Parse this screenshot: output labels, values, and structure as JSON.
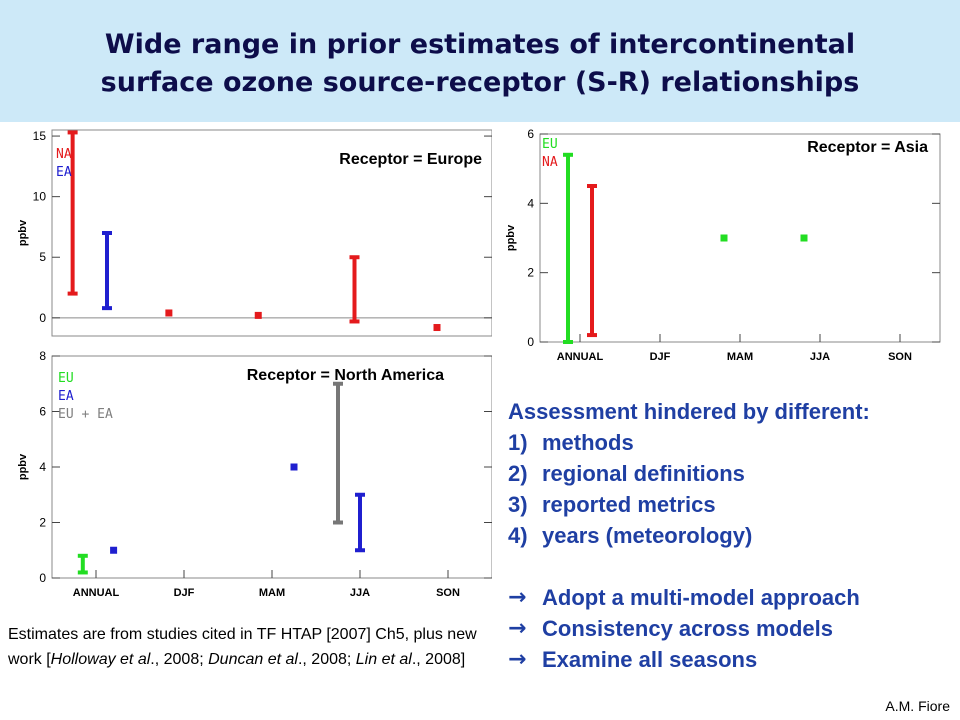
{
  "title": {
    "line1": "Wide range in prior estimates of intercontinental",
    "line2": "surface ozone source-receptor (S-R) relationships"
  },
  "chart_data": [
    {
      "type": "scatter",
      "title": "Receptor = Europe",
      "ylabel": "ppbv",
      "xlabel": "",
      "ylim": [
        -1.5,
        15.5
      ],
      "yticks": [
        0,
        5,
        10,
        15
      ],
      "legend": [
        {
          "label": "NA",
          "color": "#e41a1c"
        },
        {
          "label": "EA",
          "color": "#1f1fcf"
        }
      ],
      "ranges": [
        {
          "x": 0.15,
          "low": 2,
          "high": 15.3,
          "color": "#e41a1c"
        },
        {
          "x": 0.4,
          "low": 0.8,
          "high": 7.0,
          "color": "#1f1fcf"
        },
        {
          "x": 2.2,
          "low": -0.3,
          "high": 5.0,
          "color": "#e41a1c"
        }
      ],
      "points": [
        {
          "x": 0.85,
          "y": 0.4,
          "color": "#e41a1c"
        },
        {
          "x": 1.5,
          "y": 0.2,
          "color": "#e41a1c"
        },
        {
          "x": 2.8,
          "y": -0.8,
          "color": "#e41a1c"
        }
      ]
    },
    {
      "type": "scatter",
      "title": "Receptor = Asia",
      "ylabel": "ppbv",
      "ylim": [
        0,
        6
      ],
      "yticks": [
        0,
        2,
        4,
        6
      ],
      "categories": [
        "ANNUAL",
        "DJF",
        "MAM",
        "JJA",
        "SON"
      ],
      "legend": [
        {
          "label": "EU",
          "color": "#22dd22"
        },
        {
          "label": "NA",
          "color": "#e41a1c"
        }
      ],
      "ranges": [
        {
          "x": -0.15,
          "low": 0,
          "high": 5.4,
          "color": "#22dd22"
        },
        {
          "x": 0.15,
          "low": 0.2,
          "high": 4.5,
          "color": "#e41a1c"
        }
      ],
      "points": [
        {
          "x": 1.8,
          "y": 3.0,
          "color": "#22dd22"
        },
        {
          "x": 2.8,
          "y": 3.0,
          "color": "#22dd22"
        }
      ]
    },
    {
      "type": "scatter",
      "title": "Receptor = North America",
      "ylabel": "ppbv",
      "ylim": [
        0,
        8
      ],
      "yticks": [
        0,
        2,
        4,
        6,
        8
      ],
      "categories": [
        "ANNUAL",
        "DJF",
        "MAM",
        "JJA",
        "SON"
      ],
      "legend": [
        {
          "label": "EU",
          "color": "#22dd22"
        },
        {
          "label": "EA",
          "color": "#1f1fcf"
        },
        {
          "label": "EU + EA",
          "color": "#808080"
        }
      ],
      "ranges": [
        {
          "x": -0.15,
          "low": 0.2,
          "high": 0.8,
          "color": "#22dd22"
        },
        {
          "x": 2.75,
          "low": 2.0,
          "high": 7.0,
          "color": "#777777"
        },
        {
          "x": 3.0,
          "low": 1.0,
          "high": 3.0,
          "color": "#1f1fcf"
        }
      ],
      "points": [
        {
          "x": 0.2,
          "y": 1.0,
          "color": "#1f1fcf"
        },
        {
          "x": 2.25,
          "y": 4.0,
          "color": "#1f1fcf"
        }
      ]
    }
  ],
  "assessment": {
    "heading": "Assessment hindered by different:",
    "items": [
      {
        "num": "1)",
        "text": "methods"
      },
      {
        "num": "2)",
        "text": "regional definitions"
      },
      {
        "num": "3)",
        "text": "reported metrics"
      },
      {
        "num": "4)",
        "text": "years (meteorology)"
      }
    ],
    "arrow": "→",
    "actions": [
      "Adopt a multi-model approach",
      "Consistency across models",
      "Examine all seasons"
    ]
  },
  "footnote": {
    "p1": "Estimates are from studies cited in TF HTAP [2007] Ch5, plus new work [",
    "a1": "Holloway et al",
    "p2": "., 2008; ",
    "a2": "Duncan et al",
    "p3": "., 2008; ",
    "a3": "Lin et al",
    "p4": "., 2008]"
  },
  "credit": "A.M. Fiore"
}
